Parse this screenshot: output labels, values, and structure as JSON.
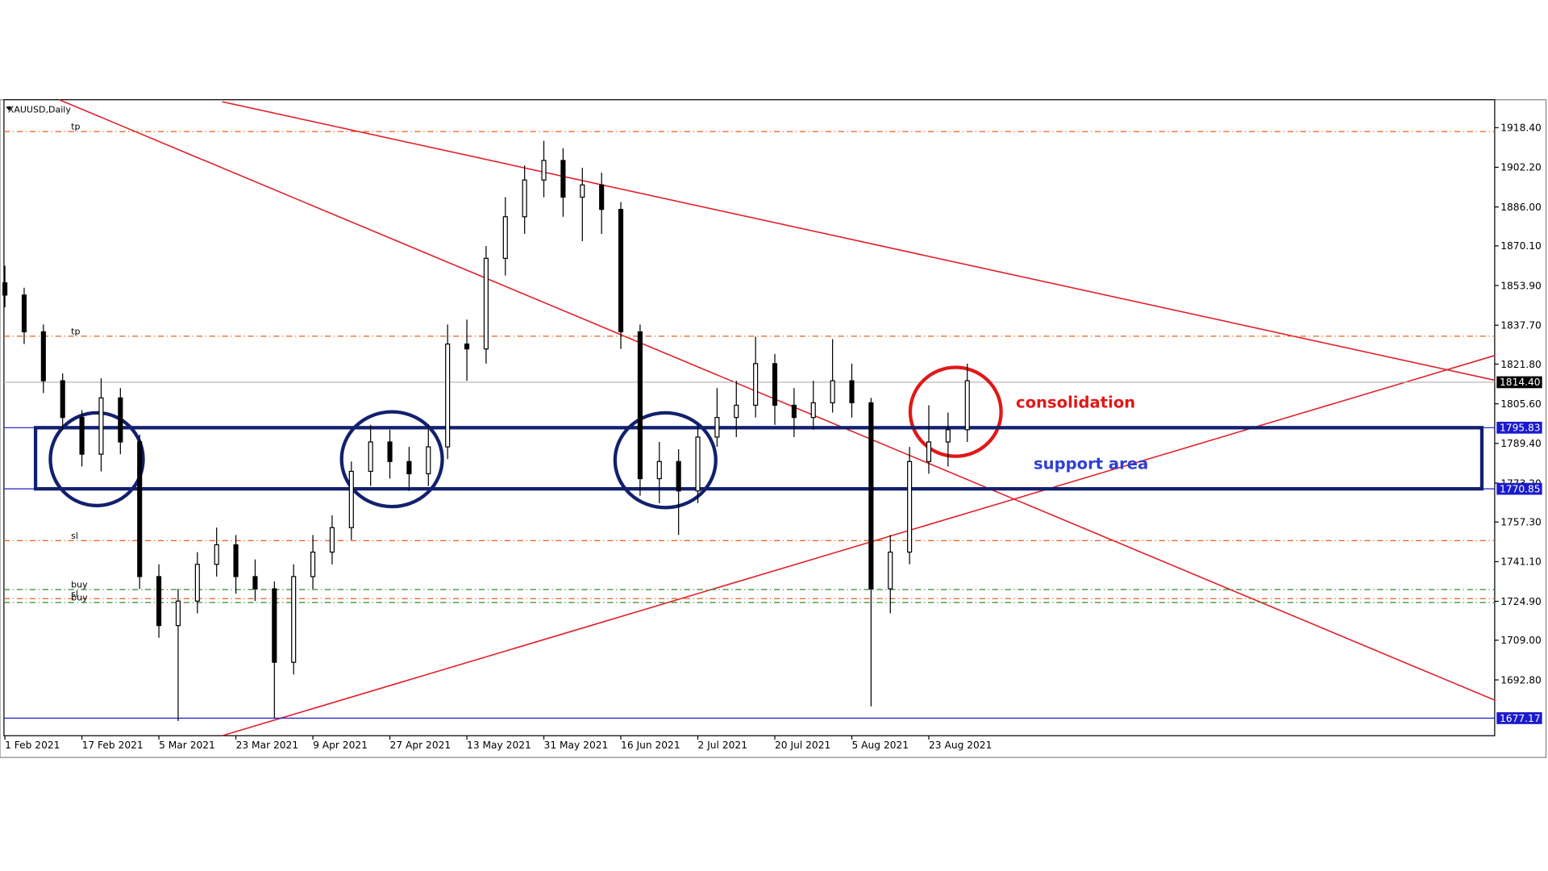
{
  "chart_data": {
    "type": "candlestick",
    "title": "XAUUSD,Daily",
    "xlim": [
      -0.15,
      232.2
    ],
    "ylim": [
      1670.0,
      1929.8
    ],
    "xticks": [
      {
        "value": 0,
        "label": "1 Feb 2021"
      },
      {
        "value": 12,
        "label": "17 Feb 2021"
      },
      {
        "value": 24,
        "label": "5 Mar 2021"
      },
      {
        "value": 36,
        "label": "23 Mar 2021"
      },
      {
        "value": 48,
        "label": "9 Apr 2021"
      },
      {
        "value": 60,
        "label": "27 Apr 2021"
      },
      {
        "value": 72,
        "label": "13 May 2021"
      },
      {
        "value": 84,
        "label": "31 May 2021"
      },
      {
        "value": 96,
        "label": "16 Jun 2021"
      },
      {
        "value": 108,
        "label": "2 Jul 2021"
      },
      {
        "value": 120,
        "label": "20 Jul 2021"
      },
      {
        "value": 132,
        "label": "5 Aug 2021"
      },
      {
        "value": 144,
        "label": "23 Aug 2021"
      }
    ],
    "yticks": [
      {
        "value": 1918.4,
        "label": "1918.40"
      },
      {
        "value": 1902.2,
        "label": "1902.20"
      },
      {
        "value": 1886.0,
        "label": "1886.00"
      },
      {
        "value": 1870.1,
        "label": "1870.10"
      },
      {
        "value": 1853.9,
        "label": "1853.90"
      },
      {
        "value": 1837.7,
        "label": "1837.70"
      },
      {
        "value": 1821.8,
        "label": "1821.80"
      },
      {
        "value": 1805.6,
        "label": "1805.60"
      },
      {
        "value": 1789.4,
        "label": "1789.40"
      },
      {
        "value": 1773.2,
        "label": "1773.20"
      },
      {
        "value": 1757.3,
        "label": "1757.30"
      },
      {
        "value": 1741.1,
        "label": "1741.10"
      },
      {
        "value": 1724.9,
        "label": "1724.90"
      },
      {
        "value": 1709.0,
        "label": "1709.00"
      },
      {
        "value": 1692.8,
        "label": "1692.80"
      }
    ],
    "candles": [
      {
        "x": 0,
        "o": 1855,
        "h": 1862,
        "l": 1845,
        "c": 1850
      },
      {
        "x": 3,
        "o": 1850,
        "h": 1853,
        "l": 1830,
        "c": 1835
      },
      {
        "x": 6,
        "o": 1835,
        "h": 1838,
        "l": 1810,
        "c": 1815
      },
      {
        "x": 9,
        "o": 1815,
        "h": 1818,
        "l": 1795,
        "c": 1800
      },
      {
        "x": 12,
        "o": 1800,
        "h": 1803,
        "l": 1780,
        "c": 1785
      },
      {
        "x": 15,
        "o": 1785,
        "h": 1816,
        "l": 1778,
        "c": 1808
      },
      {
        "x": 18,
        "o": 1808,
        "h": 1812,
        "l": 1785,
        "c": 1790
      },
      {
        "x": 21,
        "o": 1790,
        "h": 1793,
        "l": 1730,
        "c": 1735
      },
      {
        "x": 24,
        "o": 1735,
        "h": 1740,
        "l": 1710,
        "c": 1715
      },
      {
        "x": 27,
        "o": 1715,
        "h": 1730,
        "l": 1676,
        "c": 1725
      },
      {
        "x": 30,
        "o": 1725,
        "h": 1745,
        "l": 1720,
        "c": 1740
      },
      {
        "x": 33,
        "o": 1740,
        "h": 1755,
        "l": 1735,
        "c": 1748
      },
      {
        "x": 36,
        "o": 1748,
        "h": 1752,
        "l": 1728,
        "c": 1735
      },
      {
        "x": 39,
        "o": 1735,
        "h": 1742,
        "l": 1725,
        "c": 1730
      },
      {
        "x": 42,
        "o": 1730,
        "h": 1733,
        "l": 1677,
        "c": 1700
      },
      {
        "x": 45,
        "o": 1700,
        "h": 1740,
        "l": 1695,
        "c": 1735
      },
      {
        "x": 48,
        "o": 1735,
        "h": 1752,
        "l": 1730,
        "c": 1745
      },
      {
        "x": 51,
        "o": 1745,
        "h": 1760,
        "l": 1740,
        "c": 1755
      },
      {
        "x": 54,
        "o": 1755,
        "h": 1782,
        "l": 1750,
        "c": 1778
      },
      {
        "x": 57,
        "o": 1778,
        "h": 1797,
        "l": 1772,
        "c": 1790
      },
      {
        "x": 60,
        "o": 1790,
        "h": 1795,
        "l": 1775,
        "c": 1782
      },
      {
        "x": 63,
        "o": 1782,
        "h": 1788,
        "l": 1770,
        "c": 1777
      },
      {
        "x": 66,
        "o": 1777,
        "h": 1797,
        "l": 1772,
        "c": 1788
      },
      {
        "x": 69,
        "o": 1788,
        "h": 1838,
        "l": 1783,
        "c": 1830
      },
      {
        "x": 72,
        "o": 1830,
        "h": 1840,
        "l": 1815,
        "c": 1828
      },
      {
        "x": 75,
        "o": 1828,
        "h": 1870,
        "l": 1822,
        "c": 1865
      },
      {
        "x": 78,
        "o": 1865,
        "h": 1890,
        "l": 1858,
        "c": 1882
      },
      {
        "x": 81,
        "o": 1882,
        "h": 1903,
        "l": 1875,
        "c": 1897
      },
      {
        "x": 84,
        "o": 1897,
        "h": 1913,
        "l": 1890,
        "c": 1905
      },
      {
        "x": 87,
        "o": 1905,
        "h": 1910,
        "l": 1882,
        "c": 1890
      },
      {
        "x": 90,
        "o": 1890,
        "h": 1902,
        "l": 1872,
        "c": 1895
      },
      {
        "x": 93,
        "o": 1895,
        "h": 1900,
        "l": 1875,
        "c": 1885
      },
      {
        "x": 96,
        "o": 1885,
        "h": 1888,
        "l": 1828,
        "c": 1835
      },
      {
        "x": 99,
        "o": 1835,
        "h": 1838,
        "l": 1768,
        "c": 1775
      },
      {
        "x": 102,
        "o": 1775,
        "h": 1790,
        "l": 1765,
        "c": 1782
      },
      {
        "x": 105,
        "o": 1782,
        "h": 1787,
        "l": 1752,
        "c": 1770
      },
      {
        "x": 108,
        "o": 1770,
        "h": 1797,
        "l": 1765,
        "c": 1792
      },
      {
        "x": 111,
        "o": 1792,
        "h": 1812,
        "l": 1788,
        "c": 1800
      },
      {
        "x": 114,
        "o": 1800,
        "h": 1815,
        "l": 1792,
        "c": 1805
      },
      {
        "x": 117,
        "o": 1805,
        "h": 1833,
        "l": 1800,
        "c": 1822
      },
      {
        "x": 120,
        "o": 1822,
        "h": 1826,
        "l": 1797,
        "c": 1805
      },
      {
        "x": 123,
        "o": 1805,
        "h": 1812,
        "l": 1792,
        "c": 1800
      },
      {
        "x": 126,
        "o": 1800,
        "h": 1815,
        "l": 1795,
        "c": 1806
      },
      {
        "x": 129,
        "o": 1806,
        "h": 1832,
        "l": 1802,
        "c": 1815
      },
      {
        "x": 132,
        "o": 1815,
        "h": 1822,
        "l": 1800,
        "c": 1806
      },
      {
        "x": 135,
        "o": 1806,
        "h": 1808,
        "l": 1682,
        "c": 1730
      },
      {
        "x": 138,
        "o": 1730,
        "h": 1752,
        "l": 1720,
        "c": 1745
      },
      {
        "x": 141,
        "o": 1745,
        "h": 1788,
        "l": 1740,
        "c": 1782
      },
      {
        "x": 144,
        "o": 1782,
        "h": 1805,
        "l": 1777,
        "c": 1790
      },
      {
        "x": 147,
        "o": 1790,
        "h": 1802,
        "l": 1780,
        "c": 1795
      },
      {
        "x": 150,
        "o": 1795,
        "h": 1822,
        "l": 1790,
        "c": 1815
      }
    ],
    "levels": [
      {
        "value": 1916.8,
        "label": "tp",
        "color": "#e8601c"
      },
      {
        "value": 1833.2,
        "label": "tp",
        "color": "#e8601c"
      },
      {
        "value": 1749.7,
        "label": "sl",
        "color": "#e8601c"
      },
      {
        "value": 1729.7,
        "label": "buy",
        "color": "#2e8b2e"
      },
      {
        "value": 1726.0,
        "label": "sl",
        "color": "#e8601c"
      },
      {
        "value": 1724.4,
        "label": "buy",
        "color": "#2e8b2e"
      }
    ],
    "price_markers": [
      {
        "value": 1814.4,
        "label": "1814.40",
        "color": "#000000",
        "line": "#b0b0b0"
      },
      {
        "value": 1795.83,
        "label": "1795.83",
        "color": "#1a1acc",
        "line": "#1a1acc"
      },
      {
        "value": 1770.85,
        "label": "1770.85",
        "color": "#1a1acc",
        "line": "#1a1acc"
      },
      {
        "value": 1677.17,
        "label": "1677.17",
        "color": "#1a1acc",
        "line": "#1a1acc"
      }
    ],
    "annotations": [
      {
        "text": "consolidation",
        "color": "#e01818"
      },
      {
        "text": "support area",
        "color": "#2f3fd0"
      }
    ]
  }
}
